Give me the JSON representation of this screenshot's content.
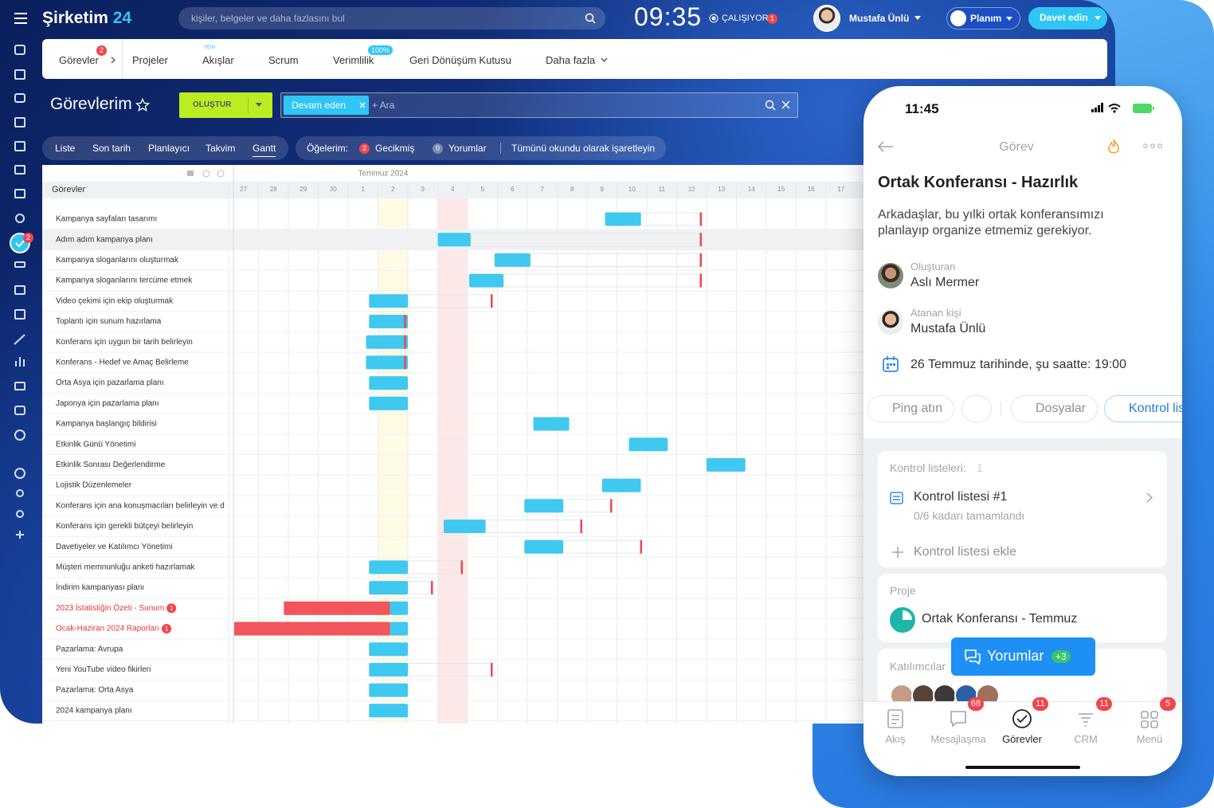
{
  "topbar": {
    "logo": "Şirketim",
    "logo_num": "24",
    "search_placeholder": "kişiler, belgeler ve daha fazlasını bul",
    "clock": "09:35",
    "status": "ÇALIŞIYOR",
    "status_badge": "1",
    "user": "Mustafa Ünlü",
    "plan": "Planım",
    "invite": "Davet edin"
  },
  "sidebar": {
    "badge": "2"
  },
  "nav": {
    "items": [
      {
        "label": "Görevler",
        "badge": "2"
      },
      {
        "label": "Projeler"
      },
      {
        "label": "Akışlar",
        "tag": "YENİ"
      },
      {
        "label": "Scrum"
      },
      {
        "label": "Verimlilik",
        "badge": "100%"
      },
      {
        "label": "Geri Dönüşüm Kutusu"
      },
      {
        "label": "Daha fazla"
      }
    ]
  },
  "toolbar": {
    "title": "Görevlerim",
    "create": "OLUŞTUR",
    "filter": "Devam eden",
    "search": "+ Ara"
  },
  "views": {
    "tabs": [
      "Liste",
      "Son tarih",
      "Planlayıcı",
      "Takvim",
      "Gantt"
    ],
    "counters_label": "Öğelerim:",
    "overdue_count": "2",
    "overdue": "Gecikmiş",
    "comments_count": "0",
    "comments": "Yorumlar",
    "mark_read": "Tümünü okundu olarak işaretleyin"
  },
  "gantt": {
    "column_header": "Görevler",
    "month": "Temmuz 2024",
    "days": [
      "27",
      "28",
      "29",
      "30",
      "1",
      "2",
      "3",
      "4",
      "5",
      "6",
      "7",
      "8",
      "9",
      "10",
      "11",
      "12",
      "13",
      "14",
      "15",
      "16",
      "17"
    ],
    "tasks": [
      {
        "name": "Kampanya sayfaları tasarımı",
        "start": 12.6,
        "end": 13.8,
        "deadline": 15.8
      },
      {
        "name": "Adım adım kampanya planı",
        "start": 7.0,
        "end": 8.1,
        "deadline": 15.8
      },
      {
        "name": "Kampanya sloganlarını oluşturmak",
        "start": 8.9,
        "end": 10.1,
        "deadline": 15.8
      },
      {
        "name": "Kampanya sloganlarını tercüme etmek",
        "start": 8.05,
        "end": 9.2,
        "deadline": 15.8
      },
      {
        "name": "Video çekimi için ekip oluşturmak",
        "start": 4.7,
        "end": 6.0,
        "deadline": 8.8
      },
      {
        "name": "Toplantı için sunum hazırlama",
        "start": 4.7,
        "end": 6.0,
        "deadline": 5.9
      },
      {
        "name": "Konferans için uygun bir tarih belirleyin",
        "start": 4.6,
        "end": 6.0,
        "deadline": 5.9
      },
      {
        "name": "Konferans - Hedef ve Amaç Belirleme",
        "start": 4.6,
        "end": 6.0,
        "deadline": 5.9
      },
      {
        "name": "Orta Asya için pazarlama planı",
        "start": 4.7,
        "end": 6.0
      },
      {
        "name": "Japonya için pazarlama planı",
        "start": 4.7,
        "end": 6.0
      },
      {
        "name": "Kampanya başlangıç bildirisi",
        "start": 10.2,
        "end": 11.4
      },
      {
        "name": "Etkinlik Günü Yönetimi",
        "start": 13.4,
        "end": 14.7
      },
      {
        "name": "Etkinlik Sonrası Değerlendirme",
        "start": 16.0,
        "end": 17.3
      },
      {
        "name": "Lojistik Düzenlemeler",
        "start": 12.5,
        "end": 13.8
      },
      {
        "name": "Konferans için ana konuşmacıları belirleyin ve d",
        "start": 9.9,
        "end": 11.2,
        "deadline": 12.8
      },
      {
        "name": "Konferans için gerekli bütçeyi belirleyin",
        "start": 7.2,
        "end": 8.6,
        "deadline": 11.8
      },
      {
        "name": "Davetiyeler ve Katılımcı Yönetimi",
        "start": 9.9,
        "end": 11.2,
        "deadline": 13.8
      },
      {
        "name": "Müşteri memnunluğu anketi hazırlamak",
        "start": 4.7,
        "end": 6.0,
        "deadline": 7.8
      },
      {
        "name": "İndirim kampanyası planı",
        "start": 4.7,
        "end": 6.0,
        "deadline": 6.8
      },
      {
        "name": "2023 İstatistiğin Özeti - Sunum",
        "badge": "1",
        "overdue_start": 1.85,
        "start": 5.4,
        "end": 6.0
      },
      {
        "name": "Ocak-Haziran 2024 Raporları",
        "badge": "1",
        "overdue_start": 0.15,
        "start": 5.4,
        "end": 6.0
      },
      {
        "name": "Pazarlama: Avrupa",
        "start": 4.7,
        "end": 6.0
      },
      {
        "name": "Yeni YouTube video fikirleri",
        "start": 4.7,
        "end": 6.0,
        "deadline": 8.8
      },
      {
        "name": "Pazarlama: Orta Asya",
        "start": 4.7,
        "end": 6.0
      },
      {
        "name": "2024 kampanya planı",
        "start": 4.7,
        "end": 6.0
      }
    ]
  },
  "phone": {
    "time": "11:45",
    "header": "Görev",
    "title": "Ortak Konferansı - Hazırlık",
    "description": "Arkadaşlar, bu yılki ortak konferansımızı planlayıp organize etmemiz gerekiyor.",
    "creator_label": "Oluşturan",
    "creator": "Aslı Mermer",
    "assignee_label": "Atanan kişi",
    "assignee": "Mustafa Ünlü",
    "deadline": "26 Temmuz tarihinde, şu saatte: 19:00",
    "actions": [
      "Ping atın",
      "Dosyalar",
      "Kontrol listesi"
    ],
    "checklists_label": "Kontrol listeleri:",
    "checklists_count": "1",
    "checklist": "Kontrol listesi #1",
    "checklist_progress": "0/6 kadarı tamamlandı",
    "add_checklist": "Kontrol listesi ekle",
    "project_label": "Proje",
    "project": "Ortak Konferansı - Temmuz",
    "participants_label": "Katılımcılar",
    "comments_button": "Yorumlar",
    "comments_badge": "+3",
    "tabs": [
      {
        "label": "Akış"
      },
      {
        "label": "Mesajlaşma",
        "badge": "68"
      },
      {
        "label": "Görevler",
        "badge": "11"
      },
      {
        "label": "CRM",
        "badge": "11"
      },
      {
        "label": "Menü",
        "badge": "5"
      }
    ]
  }
}
